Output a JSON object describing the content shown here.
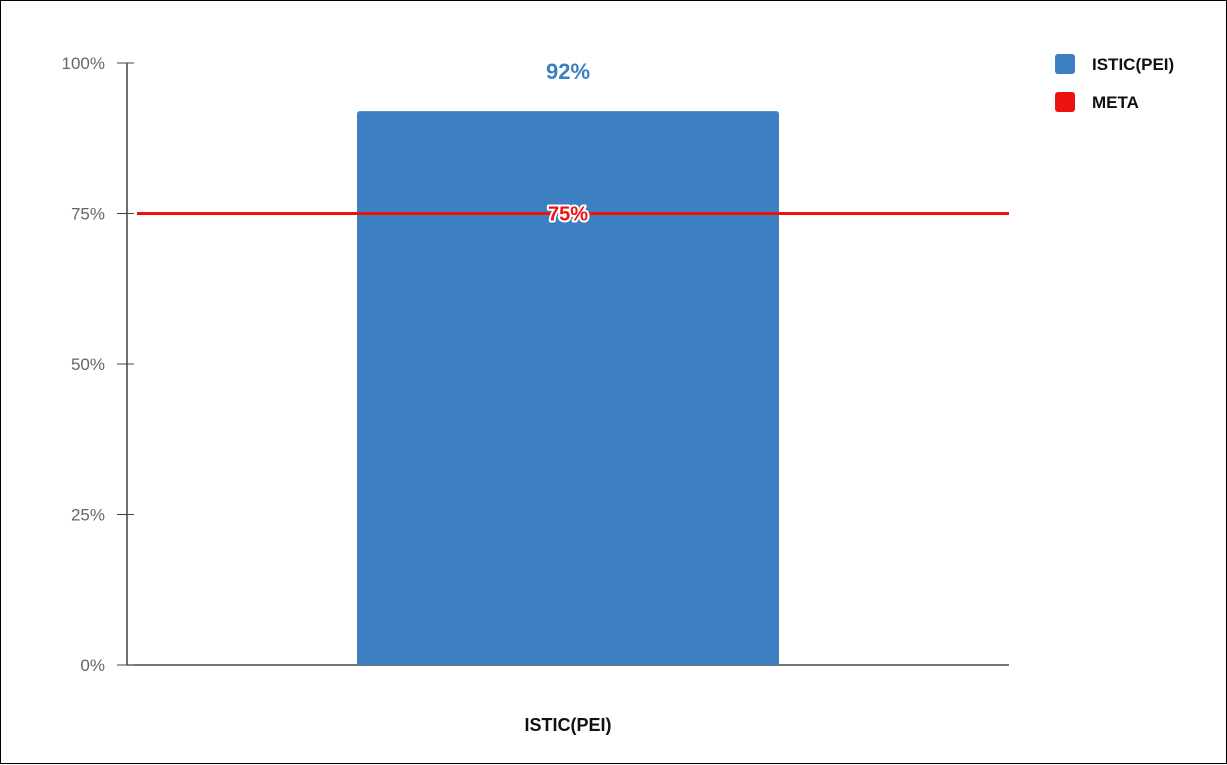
{
  "chart_data": {
    "type": "bar",
    "categories": [
      "ISTIC(PEI)"
    ],
    "series": [
      {
        "name": "ISTIC(PEI)",
        "values": [
          92
        ],
        "color": "#3d80c1",
        "label": "92%"
      }
    ],
    "reference_line": {
      "name": "META",
      "value": 75,
      "color": "#ee1111",
      "label": "75%"
    },
    "y_ticks": [
      {
        "value": 0,
        "label": "0%"
      },
      {
        "value": 25,
        "label": "25%"
      },
      {
        "value": 50,
        "label": "50%"
      },
      {
        "value": 75,
        "label": "75%"
      },
      {
        "value": 100,
        "label": "100%"
      }
    ],
    "ylim": [
      0,
      100
    ],
    "title": "",
    "xlabel": "",
    "ylabel": "",
    "grid": false,
    "legend_position": "top-right",
    "legend": [
      {
        "label": "ISTIC(PEI)",
        "color": "#3d80c1"
      },
      {
        "label": "META",
        "color": "#ee1111"
      }
    ]
  }
}
